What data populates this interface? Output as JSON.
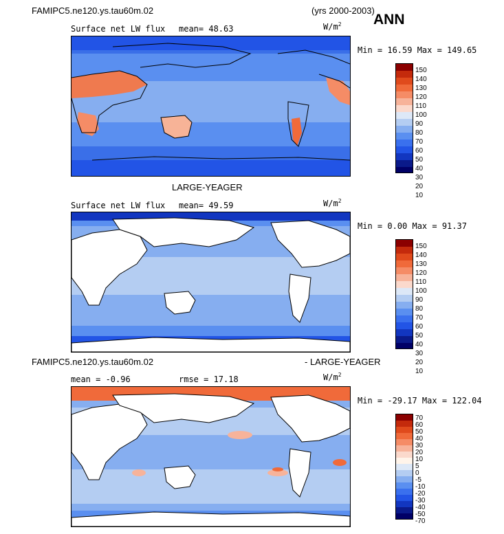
{
  "header": {
    "case": "FAMIPC5.ne120.ys.tau60m.02",
    "years": "(yrs 2000-2003)",
    "season": "ANN"
  },
  "panel1": {
    "field": "Surface net LW flux",
    "mean": "mean=  48.63",
    "units": "W/m",
    "units_sup": "2",
    "minmax": "Min =  16.59 Max = 149.65",
    "ticks": [
      "150",
      "140",
      "130",
      "120",
      "110",
      "100",
      "90",
      "80",
      "70",
      "60",
      "50",
      "40",
      "30",
      "20",
      "10"
    ]
  },
  "panel2": {
    "title": "LARGE-YEAGER",
    "field": "Surface net LW flux",
    "mean": "mean=  49.59",
    "units": "W/m",
    "units_sup": "2",
    "minmax": "Min =   0.00 Max =  91.37",
    "ticks": [
      "150",
      "140",
      "130",
      "120",
      "110",
      "100",
      "90",
      "80",
      "70",
      "60",
      "50",
      "40",
      "30",
      "20",
      "10"
    ]
  },
  "panel3": {
    "title_left": "FAMIPC5.ne120.ys.tau60m.02",
    "title_right": "- LARGE-YEAGER",
    "mean": "mean =  -0.96",
    "rmse": "rmse =  17.18",
    "units": "W/m",
    "units_sup": "2",
    "minmax": "Min = -29.17 Max = 122.04",
    "ticks": [
      "70",
      "60",
      "50",
      "40",
      "30",
      "20",
      "10",
      "5",
      "0",
      "-5",
      "-10",
      "-20",
      "-30",
      "-40",
      "-50",
      "-70"
    ]
  },
  "colors": {
    "abs_scale": [
      "#8b0000",
      "#c42a0c",
      "#e04a1c",
      "#f06a3a",
      "#f58c66",
      "#f7b39a",
      "#fbd9cc",
      "#dde8f7",
      "#b4cdf2",
      "#86aef0",
      "#5a8ff0",
      "#3a70ee",
      "#2254e6",
      "#1236c0",
      "#0a1a8a",
      "#000066"
    ],
    "diff_scale": [
      "#8b0000",
      "#c42a0c",
      "#e04a1c",
      "#f06a3a",
      "#f58c66",
      "#f7b39a",
      "#fbd9cc",
      "#fff4ea",
      "#dde8f7",
      "#b4cdf2",
      "#86aef0",
      "#5a8ff0",
      "#3a70ee",
      "#2254e6",
      "#1236c0",
      "#0a1a8a",
      "#000066"
    ],
    "ocean_mid": "#6f9cf0",
    "ocean_trop": "#8fb5f2",
    "ocean_high": "#3a6fe8",
    "land_hot": "#ef7a4f",
    "land_warm": "#f7b397",
    "obs_ocean": "#88aef0",
    "diff_ocean": "#a9c4f2",
    "diff_arctic": "#f06a3a"
  }
}
